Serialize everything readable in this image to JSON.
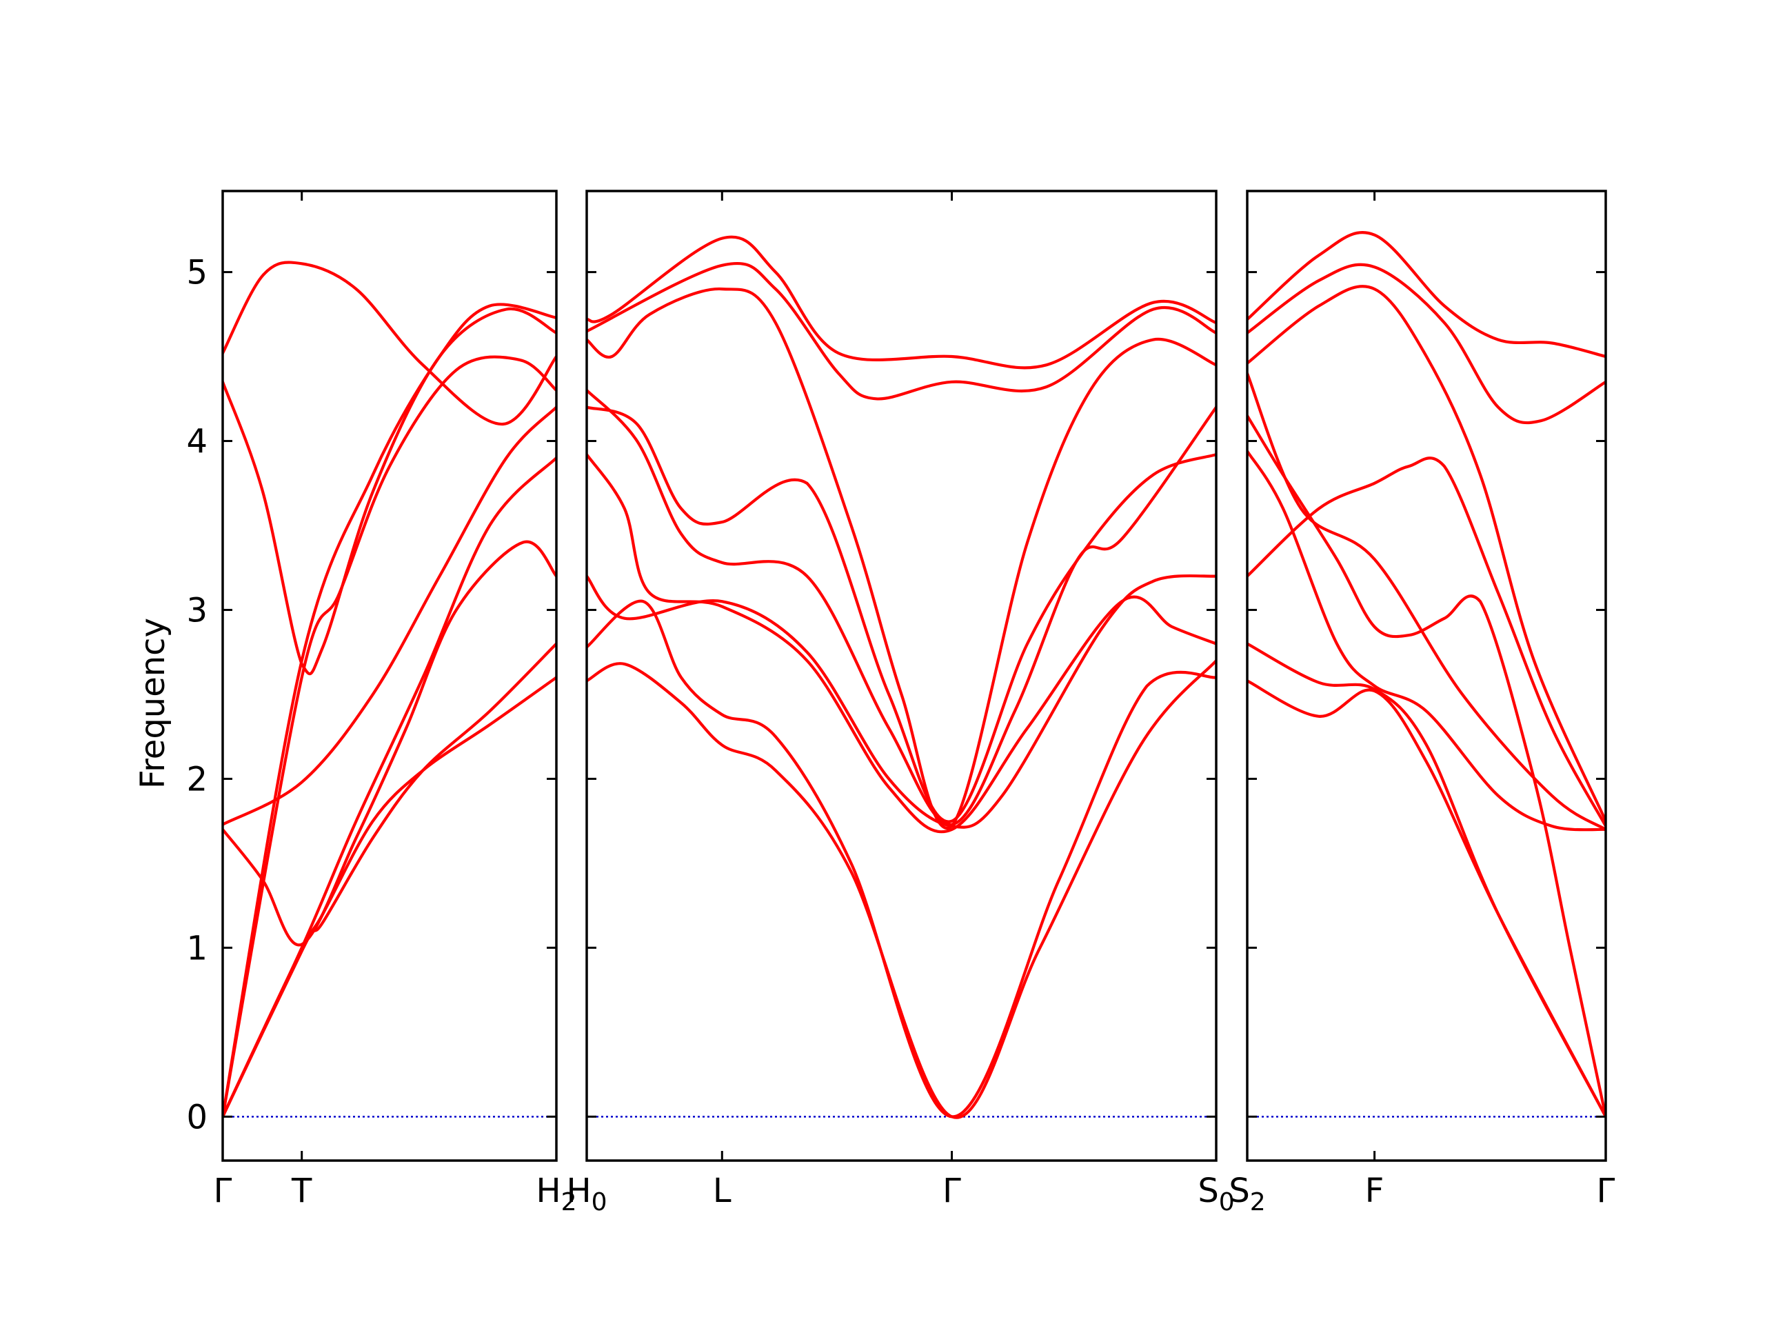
{
  "colors": {
    "band": "#ff0000",
    "zero_line": "#0000cc",
    "axis": "#000000"
  },
  "chart_data": {
    "type": "line",
    "title": "",
    "xlabel": "",
    "ylabel": "Frequency",
    "ylim": [
      -0.26,
      5.48
    ],
    "yticks": [
      "0",
      "1",
      "2",
      "3",
      "4",
      "5"
    ],
    "grid": false,
    "zero_line": true,
    "panels": [
      {
        "xticks": [
          {
            "x": 0.0,
            "label": "Γ"
          },
          {
            "x": 0.237,
            "label": "T"
          },
          {
            "x": 1.0,
            "label": "H",
            "sub": "2"
          }
        ],
        "bands": [
          [
            [
              0,
              0
            ],
            [
              0.237,
              0.98
            ],
            [
              0.3,
              1.2
            ],
            [
              0.45,
              1.75
            ],
            [
              0.6,
              2.05
            ],
            [
              0.8,
              2.32
            ],
            [
              1,
              2.6
            ]
          ],
          [
            [
              0,
              0
            ],
            [
              0.237,
              0.99
            ],
            [
              0.3,
              1.15
            ],
            [
              0.45,
              1.65
            ],
            [
              0.6,
              2.05
            ],
            [
              0.8,
              2.4
            ],
            [
              1,
              2.8
            ]
          ],
          [
            [
              0,
              1.7
            ],
            [
              0.12,
              1.4
            ],
            [
              0.237,
              1.02
            ],
            [
              0.4,
              1.65
            ],
            [
              0.55,
              2.3
            ],
            [
              0.7,
              3.0
            ],
            [
              0.9,
              3.4
            ],
            [
              1,
              3.2
            ]
          ],
          [
            [
              0,
              1.73
            ],
            [
              0.237,
              1.98
            ],
            [
              0.45,
              2.5
            ],
            [
              0.65,
              3.2
            ],
            [
              0.85,
              3.9
            ],
            [
              1,
              4.2
            ]
          ],
          [
            [
              0,
              0
            ],
            [
              0.237,
              2.6
            ],
            [
              0.35,
              3.1
            ],
            [
              0.5,
              3.85
            ],
            [
              0.7,
              4.42
            ],
            [
              0.89,
              4.48
            ],
            [
              1,
              4.3
            ]
          ],
          [
            [
              0,
              4.35
            ],
            [
              0.12,
              3.7
            ],
            [
              0.237,
              2.68
            ],
            [
              0.3,
              2.78
            ],
            [
              0.45,
              3.7
            ],
            [
              0.65,
              4.5
            ],
            [
              0.85,
              4.78
            ],
            [
              1,
              4.64
            ]
          ],
          [
            [
              0,
              4.52
            ],
            [
              0.12,
              4.98
            ],
            [
              0.237,
              5.05
            ],
            [
              0.4,
              4.9
            ],
            [
              0.6,
              4.45
            ],
            [
              0.84,
              4.1
            ],
            [
              1,
              4.5
            ]
          ],
          [
            [
              0,
              0
            ],
            [
              0.237,
              1.0
            ],
            [
              0.4,
              1.75
            ],
            [
              0.6,
              2.6
            ],
            [
              0.8,
              3.5
            ],
            [
              1,
              3.9
            ]
          ],
          [
            [
              0,
              0
            ],
            [
              0.237,
              2.7
            ],
            [
              0.45,
              3.8
            ],
            [
              0.65,
              4.5
            ],
            [
              0.8,
              4.8
            ],
            [
              1,
              4.73
            ]
          ]
        ]
      },
      {
        "xticks": [
          {
            "x": 0.0,
            "label": "H",
            "sub": "0"
          },
          {
            "x": 0.215,
            "label": "L"
          },
          {
            "x": 0.58,
            "label": "Γ"
          },
          {
            "x": 1.0,
            "label": "S",
            "sub": "0"
          }
        ],
        "bands": [
          [
            [
              0,
              2.58
            ],
            [
              0.06,
              2.68
            ],
            [
              0.15,
              2.45
            ],
            [
              0.215,
              2.2
            ],
            [
              0.3,
              2.05
            ],
            [
              0.42,
              1.45
            ],
            [
              0.58,
              0
            ],
            [
              0.72,
              1.0
            ],
            [
              0.88,
              2.2
            ],
            [
              1,
              2.7
            ]
          ],
          [
            [
              0,
              2.78
            ],
            [
              0.09,
              3.05
            ],
            [
              0.15,
              2.6
            ],
            [
              0.215,
              2.38
            ],
            [
              0.3,
              2.25
            ],
            [
              0.42,
              1.5
            ],
            [
              0.58,
              0
            ],
            [
              0.75,
              1.4
            ],
            [
              0.89,
              2.55
            ],
            [
              1,
              2.6
            ]
          ],
          [
            [
              0,
              3.2
            ],
            [
              0.06,
              2.95
            ],
            [
              0.215,
              3.05
            ],
            [
              0.35,
              2.75
            ],
            [
              0.48,
              2.0
            ],
            [
              0.58,
              1.72
            ],
            [
              0.66,
              1.9
            ],
            [
              0.82,
              2.9
            ],
            [
              0.9,
              3.17
            ],
            [
              1,
              3.2
            ]
          ],
          [
            [
              0,
              3.92
            ],
            [
              0.06,
              3.6
            ],
            [
              0.1,
              3.1
            ],
            [
              0.215,
              3.02
            ],
            [
              0.35,
              2.7
            ],
            [
              0.48,
              1.95
            ],
            [
              0.58,
              1.7
            ],
            [
              0.7,
              2.3
            ],
            [
              0.85,
              3.05
            ],
            [
              0.93,
              2.9
            ],
            [
              1,
              2.8
            ]
          ],
          [
            [
              0,
              4.3
            ],
            [
              0.08,
              4.0
            ],
            [
              0.15,
              3.45
            ],
            [
              0.215,
              3.28
            ],
            [
              0.35,
              3.2
            ],
            [
              0.48,
              2.3
            ],
            [
              0.58,
              1.73
            ],
            [
              0.68,
              2.4
            ],
            [
              0.78,
              3.3
            ],
            [
              0.85,
              3.42
            ],
            [
              1,
              4.2
            ]
          ],
          [
            [
              0,
              4.2
            ],
            [
              0.08,
              4.1
            ],
            [
              0.15,
              3.6
            ],
            [
              0.215,
              3.52
            ],
            [
              0.35,
              3.75
            ],
            [
              0.48,
              2.5
            ],
            [
              0.58,
              1.75
            ],
            [
              0.7,
              2.8
            ],
            [
              0.8,
              3.4
            ],
            [
              0.9,
              3.8
            ],
            [
              1,
              3.92
            ]
          ],
          [
            [
              0,
              4.6
            ],
            [
              0.04,
              4.5
            ],
            [
              0.1,
              4.75
            ],
            [
              0.215,
              4.9
            ],
            [
              0.3,
              4.7
            ],
            [
              0.42,
              3.5
            ],
            [
              0.5,
              2.5
            ],
            [
              0.58,
              1.72
            ],
            [
              0.7,
              3.4
            ],
            [
              0.8,
              4.3
            ],
            [
              0.9,
              4.6
            ],
            [
              1,
              4.45
            ]
          ],
          [
            [
              0,
              4.65
            ],
            [
              0.215,
              5.04
            ],
            [
              0.3,
              4.9
            ],
            [
              0.4,
              4.4
            ],
            [
              0.46,
              4.25
            ],
            [
              0.58,
              4.35
            ],
            [
              0.73,
              4.32
            ],
            [
              0.9,
              4.78
            ],
            [
              1,
              4.64
            ]
          ],
          [
            [
              0,
              4.72
            ],
            [
              0.04,
              4.75
            ],
            [
              0.215,
              5.2
            ],
            [
              0.3,
              5.0
            ],
            [
              0.4,
              4.52
            ],
            [
              0.58,
              4.5
            ],
            [
              0.73,
              4.45
            ],
            [
              0.9,
              4.82
            ],
            [
              1,
              4.7
            ]
          ]
        ]
      },
      {
        "xticks": [
          {
            "x": 0.0,
            "label": "S",
            "sub": "2"
          },
          {
            "x": 0.355,
            "label": "F"
          },
          {
            "x": 1.0,
            "label": "Γ"
          }
        ],
        "bands": [
          [
            [
              0,
              2.58
            ],
            [
              0.2,
              2.37
            ],
            [
              0.355,
              2.52
            ],
            [
              0.5,
              2.1
            ],
            [
              0.7,
              1.2
            ],
            [
              1,
              0
            ]
          ],
          [
            [
              0,
              2.8
            ],
            [
              0.2,
              2.57
            ],
            [
              0.355,
              2.53
            ],
            [
              0.5,
              2.2
            ],
            [
              0.7,
              1.2
            ],
            [
              1,
              0
            ]
          ],
          [
            [
              0,
              3.2
            ],
            [
              0.2,
              3.6
            ],
            [
              0.355,
              3.75
            ],
            [
              0.45,
              3.85
            ],
            [
              0.55,
              3.85
            ],
            [
              0.7,
              3.1
            ],
            [
              0.85,
              2.3
            ],
            [
              1,
              1.72
            ]
          ],
          [
            [
              0,
              3.94
            ],
            [
              0.1,
              3.6
            ],
            [
              0.25,
              2.8
            ],
            [
              0.355,
              2.55
            ],
            [
              0.5,
              2.4
            ],
            [
              0.7,
              1.9
            ],
            [
              0.85,
              1.72
            ],
            [
              1,
              1.7
            ]
          ],
          [
            [
              0,
              4.15
            ],
            [
              0.1,
              3.8
            ],
            [
              0.25,
              3.3
            ],
            [
              0.355,
              2.9
            ],
            [
              0.45,
              2.85
            ],
            [
              0.55,
              2.95
            ],
            [
              0.65,
              3.05
            ],
            [
              0.8,
              2.0
            ],
            [
              0.9,
              1.0
            ],
            [
              1,
              0
            ]
          ],
          [
            [
              0,
              4.4
            ],
            [
              0.15,
              3.6
            ],
            [
              0.355,
              3.3
            ],
            [
              0.6,
              2.5
            ],
            [
              0.85,
              1.9
            ],
            [
              1,
              1.7
            ]
          ],
          [
            [
              0,
              4.46
            ],
            [
              0.2,
              4.8
            ],
            [
              0.355,
              4.9
            ],
            [
              0.5,
              4.5
            ],
            [
              0.65,
              3.8
            ],
            [
              0.8,
              2.7
            ],
            [
              1,
              1.75
            ]
          ],
          [
            [
              0,
              4.64
            ],
            [
              0.2,
              4.95
            ],
            [
              0.355,
              5.03
            ],
            [
              0.55,
              4.7
            ],
            [
              0.7,
              4.2
            ],
            [
              0.82,
              4.12
            ],
            [
              1,
              4.35
            ]
          ],
          [
            [
              0,
              4.72
            ],
            [
              0.2,
              5.1
            ],
            [
              0.355,
              5.22
            ],
            [
              0.55,
              4.8
            ],
            [
              0.7,
              4.6
            ],
            [
              0.85,
              4.58
            ],
            [
              1,
              4.5
            ]
          ]
        ]
      }
    ]
  }
}
